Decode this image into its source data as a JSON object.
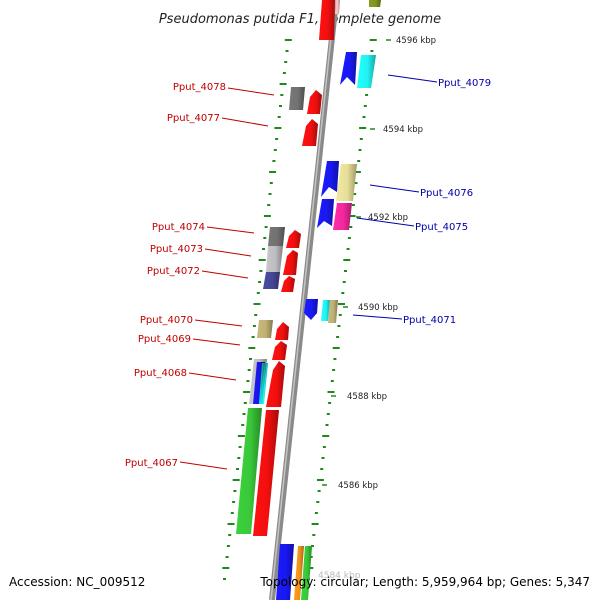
{
  "title": "Pseudomonas putida F1, complete genome",
  "footer": {
    "accession": "Accession: NC_009512",
    "topology": "Topology: circular; Length: 5,959,964 bp; Genes: 5,347"
  },
  "faded_label": "4584 kbp",
  "colors": {
    "axis": "#8a8a8a",
    "tick": "#1d8a1d",
    "label_forward": "#c00000",
    "label_reverse": "#0000aa",
    "gene_red": "#ff1010",
    "gene_blue": "#1a1aff",
    "gene_cyan": "#22ffff",
    "gene_magenta": "#ff2aa6",
    "gene_yellow": "#f3e9a0",
    "gene_green": "#3cd23c",
    "gene_gray": "#777777",
    "gene_lightgray": "#c8c8cc",
    "gene_navy": "#4a4aa0",
    "gene_tan": "#c9b97a",
    "gene_orange": "#ff9a1a",
    "gene_olive": "#8a9a20"
  },
  "kbp_labels": [
    "4596 kbp",
    "4594 kbp",
    "4592 kbp",
    "4590 kbp",
    "4588 kbp",
    "4586 kbp"
  ],
  "gene_labels": [
    {
      "name": "Pput_4079",
      "strand": "reverse"
    },
    {
      "name": "Pput_4078",
      "strand": "forward"
    },
    {
      "name": "Pput_4077",
      "strand": "forward"
    },
    {
      "name": "Pput_4076",
      "strand": "reverse"
    },
    {
      "name": "Pput_4075",
      "strand": "reverse"
    },
    {
      "name": "Pput_4074",
      "strand": "forward"
    },
    {
      "name": "Pput_4073",
      "strand": "forward"
    },
    {
      "name": "Pput_4072",
      "strand": "forward"
    },
    {
      "name": "Pput_4071",
      "strand": "reverse"
    },
    {
      "name": "Pput_4070",
      "strand": "forward"
    },
    {
      "name": "Pput_4069",
      "strand": "forward"
    },
    {
      "name": "Pput_4068",
      "strand": "forward"
    },
    {
      "name": "Pput_4067",
      "strand": "forward"
    }
  ]
}
